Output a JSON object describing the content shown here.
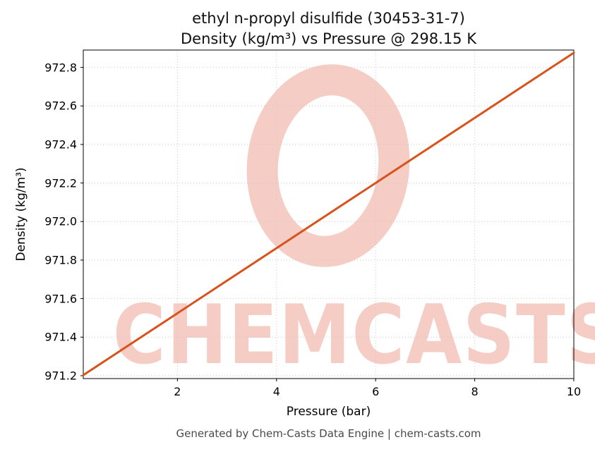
{
  "title": {
    "line1": "ethyl n-propyl disulfide (30453-31-7)",
    "line2": "Density (kg/m³) vs Pressure @ 298.15 K"
  },
  "footer": "Generated by Chem-Casts Data Engine | chem-casts.com",
  "watermark": {
    "text": "CHEMCASTS",
    "color": "#f5cdc4"
  },
  "chart_data": {
    "type": "line",
    "title": "ethyl n-propyl disulfide (30453-31-7) — Density (kg/m³) vs Pressure @ 298.15 K",
    "xlabel": "Pressure (bar)",
    "ylabel": "Density (kg/m³)",
    "xlim": [
      0.1,
      10
    ],
    "ylim": [
      971.185,
      972.89
    ],
    "x_ticks": [
      2,
      4,
      6,
      8,
      10
    ],
    "x_tick_labels": [
      "2",
      "4",
      "6",
      "8",
      "10"
    ],
    "y_ticks": [
      971.2,
      971.4,
      971.6,
      971.8,
      972.0,
      972.2,
      972.4,
      972.6,
      972.8
    ],
    "y_tick_labels": [
      "971.2",
      "971.4",
      "971.6",
      "971.8",
      "972.0",
      "972.2",
      "972.4",
      "972.6",
      "972.8"
    ],
    "grid": true,
    "legend": false,
    "line_color": "#d8531c",
    "series": [
      {
        "name": "Density",
        "x": [
          0.1,
          1,
          2,
          3,
          4,
          5,
          6,
          7,
          8,
          9,
          10
        ],
        "y": [
          971.203,
          971.355,
          971.524,
          971.693,
          971.862,
          972.031,
          972.2,
          972.369,
          972.538,
          972.707,
          972.876
        ]
      }
    ]
  }
}
